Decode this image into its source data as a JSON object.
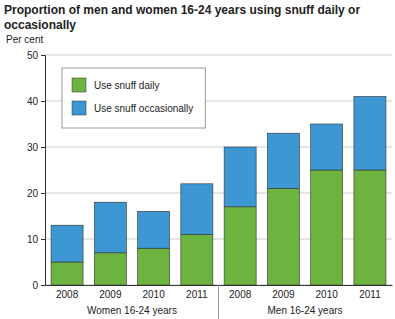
{
  "chart_data": {
    "type": "bar",
    "stacked": true,
    "title": "Proportion of men and women 16-24 years using snuff daily or occasionally",
    "y_label": "Per cent",
    "categories": [
      "2008",
      "2009",
      "2010",
      "2011",
      "2008",
      "2009",
      "2010",
      "2011"
    ],
    "group_labels": [
      "Women 16-24 years",
      "Men 16-24 years"
    ],
    "series": [
      {
        "name": "Use snuff daily",
        "color": "#6db33f",
        "values": [
          5,
          7,
          8,
          11,
          17,
          21,
          25,
          25
        ]
      },
      {
        "name": "Use snuff occasionally",
        "color": "#3d97d3",
        "values": [
          8,
          11,
          8,
          11,
          13,
          12,
          10,
          16
        ]
      }
    ],
    "ylim": [
      0,
      50
    ],
    "yticks": [
      0,
      10,
      20,
      30,
      40,
      50
    ],
    "grid": true,
    "legend": "top-left"
  }
}
